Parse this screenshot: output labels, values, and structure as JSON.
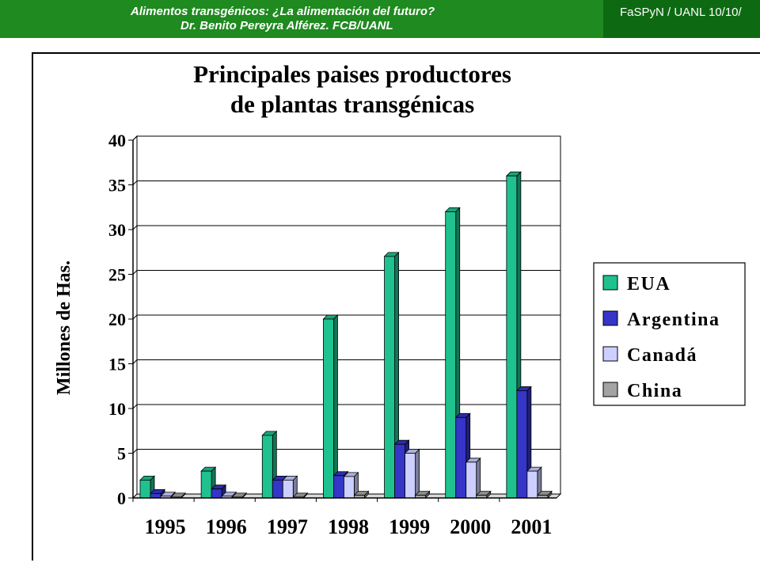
{
  "header": {
    "title": "Alimentos transgénicos: ¿La alimentación del futuro?",
    "author": "Dr. Benito Pereyra Alférez. FCB/UANL",
    "right_text": "FaSPyN / UANL  10/10/"
  },
  "chart_data": {
    "type": "bar",
    "title_line1": "Principales paises productores",
    "title_line2": "de plantas transgénicas",
    "xlabel": "",
    "ylabel": "Millones de Has.",
    "ylim": [
      0,
      40
    ],
    "yticks": [
      0,
      5,
      10,
      15,
      20,
      25,
      30,
      35,
      40
    ],
    "grid": true,
    "legend_position": "right",
    "categories": [
      "1995",
      "1996",
      "1997",
      "1998",
      "1999",
      "2000",
      "2001"
    ],
    "series": [
      {
        "name": "EUA",
        "color": "#1fc28f",
        "values": [
          2,
          3,
          7,
          20,
          27,
          32,
          36
        ]
      },
      {
        "name": "Argentina",
        "color": "#3535c8",
        "values": [
          0.5,
          1,
          2,
          2.5,
          6,
          9,
          12
        ]
      },
      {
        "name": "Canadá",
        "color": "#cccfff",
        "values": [
          0.2,
          0.2,
          2,
          2.4,
          5,
          4,
          3
        ]
      },
      {
        "name": "China",
        "color": "#a3a3a3",
        "values": [
          0.1,
          0.1,
          0.1,
          0.3,
          0.3,
          0.3,
          0.3
        ]
      }
    ]
  }
}
